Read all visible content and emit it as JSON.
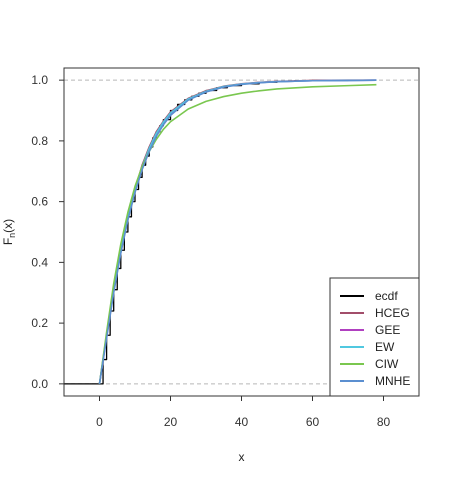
{
  "chart_data": {
    "type": "line",
    "title": "",
    "xlabel": "x",
    "ylabel_main": "F",
    "ylabel_sub": "n",
    "ylabel_arg": "(x)",
    "xlim": [
      -10,
      90
    ],
    "ylim": [
      -0.04,
      1.04
    ],
    "x_ticks": [
      0,
      20,
      40,
      60,
      80
    ],
    "y_ticks": [
      0.0,
      0.2,
      0.4,
      0.6,
      0.8,
      1.0
    ],
    "x_tick_labels": [
      "0",
      "20",
      "40",
      "60",
      "80"
    ],
    "y_tick_labels": [
      "0.0",
      "0.2",
      "0.4",
      "0.6",
      "0.8",
      "1.0"
    ],
    "reference_lines": [
      0,
      1
    ],
    "grid": false,
    "legend_position": "bottom-right",
    "series": [
      {
        "name": "ecdf",
        "color": "#000000",
        "style": "step",
        "x": [
          0,
          1,
          2,
          3,
          4,
          5,
          6,
          7,
          8,
          9,
          10,
          11,
          12,
          13,
          14,
          15,
          16,
          17,
          18,
          20,
          22,
          24,
          26,
          28,
          30,
          33,
          36,
          40,
          45,
          50,
          55,
          60,
          70,
          78
        ],
        "values": [
          0.0,
          0.08,
          0.16,
          0.24,
          0.31,
          0.38,
          0.44,
          0.5,
          0.55,
          0.6,
          0.64,
          0.68,
          0.72,
          0.75,
          0.78,
          0.81,
          0.83,
          0.85,
          0.87,
          0.9,
          0.92,
          0.935,
          0.947,
          0.957,
          0.966,
          0.975,
          0.982,
          0.988,
          0.993,
          0.996,
          0.998,
          0.999,
          1.0,
          1.0
        ]
      },
      {
        "name": "HCEG",
        "color": "#a24d6a",
        "x": [
          0,
          2,
          4,
          6,
          8,
          10,
          12,
          14,
          16,
          18,
          20,
          25,
          30,
          35,
          40,
          45,
          50,
          60,
          70,
          78
        ],
        "values": [
          0.0,
          0.16,
          0.31,
          0.44,
          0.55,
          0.64,
          0.72,
          0.78,
          0.83,
          0.865,
          0.895,
          0.94,
          0.965,
          0.98,
          0.988,
          0.993,
          0.996,
          0.999,
          1.0,
          1.0
        ]
      },
      {
        "name": "GEE",
        "color": "#b040c0",
        "x": [
          0,
          2,
          4,
          6,
          8,
          10,
          12,
          14,
          16,
          18,
          20,
          25,
          30,
          35,
          40,
          45,
          50,
          60,
          70,
          78
        ],
        "values": [
          0.0,
          0.155,
          0.305,
          0.435,
          0.545,
          0.635,
          0.71,
          0.77,
          0.82,
          0.858,
          0.888,
          0.936,
          0.962,
          0.978,
          0.987,
          0.992,
          0.995,
          0.998,
          0.999,
          1.0
        ]
      },
      {
        "name": "EW",
        "color": "#50c8e0",
        "x": [
          0,
          2,
          4,
          6,
          8,
          10,
          12,
          14,
          16,
          18,
          20,
          25,
          30,
          35,
          40,
          45,
          50,
          60,
          70,
          78
        ],
        "values": [
          0.0,
          0.16,
          0.31,
          0.44,
          0.55,
          0.64,
          0.715,
          0.775,
          0.825,
          0.862,
          0.892,
          0.938,
          0.963,
          0.979,
          0.987,
          0.992,
          0.995,
          0.998,
          0.999,
          1.0
        ]
      },
      {
        "name": "CIW",
        "color": "#7ac74f",
        "x": [
          0,
          2,
          4,
          6,
          8,
          10,
          12,
          14,
          16,
          18,
          20,
          25,
          30,
          35,
          40,
          45,
          50,
          60,
          70,
          78
        ],
        "values": [
          0.0,
          0.17,
          0.33,
          0.46,
          0.565,
          0.65,
          0.715,
          0.765,
          0.805,
          0.838,
          0.863,
          0.905,
          0.93,
          0.946,
          0.957,
          0.965,
          0.971,
          0.978,
          0.982,
          0.985
        ]
      },
      {
        "name": "MNHE",
        "color": "#5b8fd0",
        "x": [
          0,
          2,
          4,
          6,
          8,
          10,
          12,
          14,
          16,
          18,
          20,
          25,
          30,
          35,
          40,
          45,
          50,
          60,
          70,
          78
        ],
        "values": [
          0.0,
          0.15,
          0.3,
          0.43,
          0.54,
          0.63,
          0.705,
          0.765,
          0.815,
          0.853,
          0.884,
          0.934,
          0.961,
          0.977,
          0.986,
          0.991,
          0.995,
          0.998,
          0.999,
          1.0
        ]
      }
    ]
  }
}
